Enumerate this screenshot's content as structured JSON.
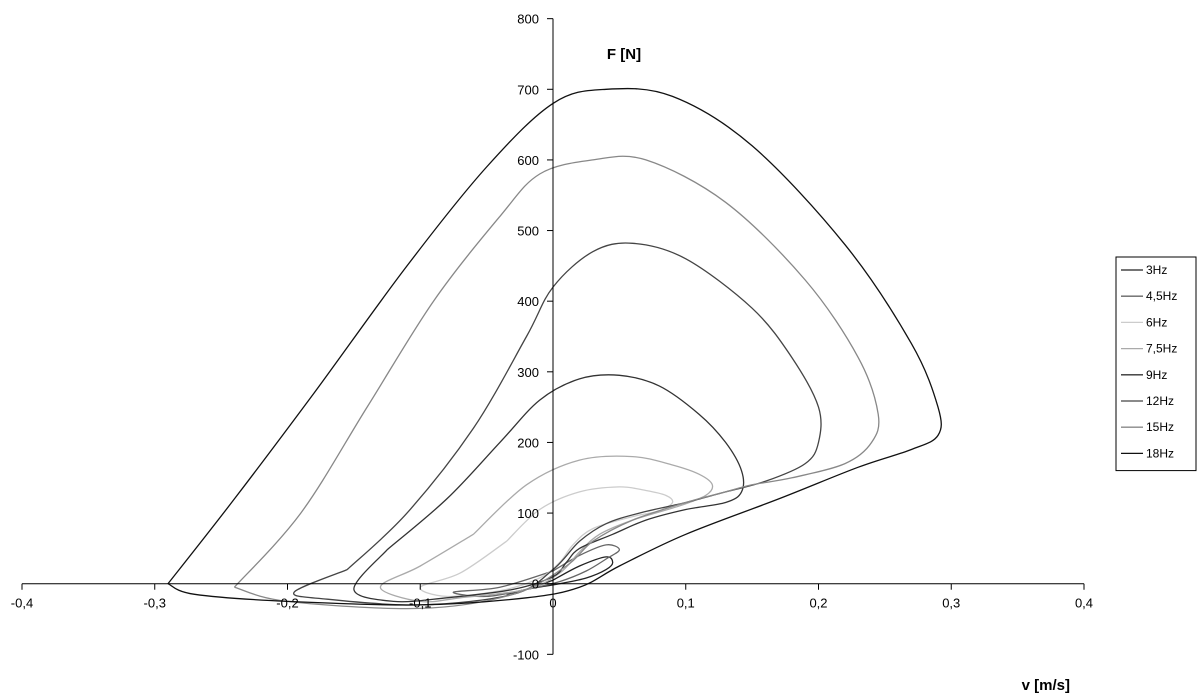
{
  "chart_data": {
    "type": "line",
    "xlabel": "v [m/s]",
    "ylabel": "F [N]",
    "xlim": [
      -0.4,
      0.4
    ],
    "ylim": [
      -100,
      800
    ],
    "x_ticks": [
      "-0,4",
      "-0,3",
      "-0,2",
      "-0,1",
      "0",
      "0,1",
      "0,2",
      "0,3",
      "0,4"
    ],
    "y_ticks": [
      "-100",
      "0",
      "100",
      "200",
      "300",
      "400",
      "500",
      "600",
      "700",
      "800"
    ],
    "grid": false,
    "legend_position": "right",
    "series": [
      {
        "name": "3Hz",
        "color": "#222222",
        "points": [
          [
            0,
            5
          ],
          [
            0.02,
            25
          ],
          [
            0.04,
            38
          ],
          [
            0.045,
            30
          ],
          [
            0.04,
            20
          ],
          [
            0.025,
            8
          ],
          [
            0.005,
            0
          ],
          [
            -0.02,
            -8
          ],
          [
            -0.035,
            -15
          ],
          [
            -0.02,
            -8
          ],
          [
            0,
            5
          ]
        ]
      },
      {
        "name": "4,5Hz",
        "color": "#666666",
        "points": [
          [
            0,
            18
          ],
          [
            0.02,
            40
          ],
          [
            0.04,
            55
          ],
          [
            0.05,
            48
          ],
          [
            0.04,
            35
          ],
          [
            0.025,
            18
          ],
          [
            0.005,
            3
          ],
          [
            -0.02,
            -8
          ],
          [
            -0.05,
            -18
          ],
          [
            -0.075,
            -12
          ],
          [
            -0.04,
            -5
          ],
          [
            0,
            18
          ]
        ]
      },
      {
        "name": "6Hz",
        "color": "#cccccc",
        "points": [
          [
            -0.035,
            60
          ],
          [
            -0.01,
            105
          ],
          [
            0.02,
            130
          ],
          [
            0.05,
            137
          ],
          [
            0.07,
            132
          ],
          [
            0.085,
            125
          ],
          [
            0.09,
            115
          ],
          [
            0.08,
            103
          ],
          [
            0.06,
            95
          ],
          [
            0.03,
            78
          ],
          [
            0.015,
            55
          ],
          [
            0.005,
            30
          ],
          [
            -0.01,
            8
          ],
          [
            -0.04,
            -10
          ],
          [
            -0.08,
            -18
          ],
          [
            -0.1,
            -5
          ],
          [
            -0.07,
            15
          ],
          [
            -0.035,
            60
          ]
        ]
      },
      {
        "name": "7,5Hz",
        "color": "#aaaaaa",
        "points": [
          [
            -0.06,
            70
          ],
          [
            -0.02,
            140
          ],
          [
            0.02,
            175
          ],
          [
            0.06,
            180
          ],
          [
            0.09,
            168
          ],
          [
            0.11,
            155
          ],
          [
            0.12,
            140
          ],
          [
            0.115,
            125
          ],
          [
            0.095,
            110
          ],
          [
            0.06,
            90
          ],
          [
            0.035,
            70
          ],
          [
            0.02,
            45
          ],
          [
            0.005,
            15
          ],
          [
            -0.02,
            -8
          ],
          [
            -0.07,
            -20
          ],
          [
            -0.1,
            -25
          ],
          [
            -0.13,
            -5
          ],
          [
            -0.1,
            25
          ],
          [
            -0.06,
            70
          ]
        ]
      },
      {
        "name": "9Hz",
        "color": "#333333",
        "points": [
          [
            -0.125,
            48
          ],
          [
            -0.08,
            120
          ],
          [
            -0.04,
            200
          ],
          [
            -0.01,
            260
          ],
          [
            0.02,
            290
          ],
          [
            0.05,
            295
          ],
          [
            0.08,
            280
          ],
          [
            0.11,
            240
          ],
          [
            0.13,
            200
          ],
          [
            0.142,
            160
          ],
          [
            0.142,
            130
          ],
          [
            0.13,
            115
          ],
          [
            0.1,
            105
          ],
          [
            0.07,
            90
          ],
          [
            0.045,
            70
          ],
          [
            0.02,
            50
          ],
          [
            0.01,
            30
          ],
          [
            0,
            10
          ],
          [
            -0.03,
            -8
          ],
          [
            -0.08,
            -20
          ],
          [
            -0.12,
            -25
          ],
          [
            -0.15,
            -8
          ],
          [
            -0.125,
            48
          ]
        ]
      },
      {
        "name": "12Hz",
        "color": "#444444",
        "points": [
          [
            -0.155,
            20
          ],
          [
            -0.11,
            100
          ],
          [
            -0.06,
            220
          ],
          [
            -0.02,
            350
          ],
          [
            0,
            420
          ],
          [
            0.03,
            470
          ],
          [
            0.06,
            482
          ],
          [
            0.1,
            460
          ],
          [
            0.15,
            390
          ],
          [
            0.18,
            320
          ],
          [
            0.2,
            250
          ],
          [
            0.2,
            200
          ],
          [
            0.19,
            170
          ],
          [
            0.16,
            145
          ],
          [
            0.13,
            130
          ],
          [
            0.1,
            115
          ],
          [
            0.065,
            100
          ],
          [
            0.04,
            85
          ],
          [
            0.02,
            60
          ],
          [
            0,
            20
          ],
          [
            -0.03,
            -15
          ],
          [
            -0.1,
            -30
          ],
          [
            -0.17,
            -22
          ],
          [
            -0.195,
            -12
          ],
          [
            -0.155,
            20
          ]
        ]
      },
      {
        "name": "15Hz",
        "color": "#888888",
        "points": [
          [
            -0.24,
            -5
          ],
          [
            -0.19,
            100
          ],
          [
            -0.14,
            250
          ],
          [
            -0.09,
            400
          ],
          [
            -0.04,
            520
          ],
          [
            -0.01,
            580
          ],
          [
            0.03,
            600
          ],
          [
            0.07,
            600
          ],
          [
            0.13,
            540
          ],
          [
            0.19,
            430
          ],
          [
            0.23,
            320
          ],
          [
            0.245,
            240
          ],
          [
            0.24,
            200
          ],
          [
            0.22,
            170
          ],
          [
            0.18,
            150
          ],
          [
            0.15,
            140
          ],
          [
            0.13,
            130
          ],
          [
            0.1,
            115
          ],
          [
            0.06,
            90
          ],
          [
            0.03,
            60
          ],
          [
            0.01,
            25
          ],
          [
            -0.03,
            -15
          ],
          [
            -0.1,
            -35
          ],
          [
            -0.2,
            -25
          ],
          [
            -0.24,
            -5
          ]
        ]
      },
      {
        "name": "18Hz",
        "color": "#111111",
        "points": [
          [
            -0.29,
            0
          ],
          [
            -0.24,
            120
          ],
          [
            -0.18,
            270
          ],
          [
            -0.11,
            450
          ],
          [
            -0.05,
            590
          ],
          [
            0,
            680
          ],
          [
            0.04,
            700
          ],
          [
            0.09,
            690
          ],
          [
            0.15,
            620
          ],
          [
            0.22,
            480
          ],
          [
            0.27,
            340
          ],
          [
            0.29,
            250
          ],
          [
            0.29,
            210
          ],
          [
            0.27,
            190
          ],
          [
            0.23,
            165
          ],
          [
            0.17,
            120
          ],
          [
            0.1,
            70
          ],
          [
            0.05,
            25
          ],
          [
            0.02,
            -5
          ],
          [
            -0.02,
            -20
          ],
          [
            -0.1,
            -30
          ],
          [
            -0.2,
            -25
          ],
          [
            -0.27,
            -15
          ],
          [
            -0.29,
            0
          ]
        ]
      }
    ]
  }
}
